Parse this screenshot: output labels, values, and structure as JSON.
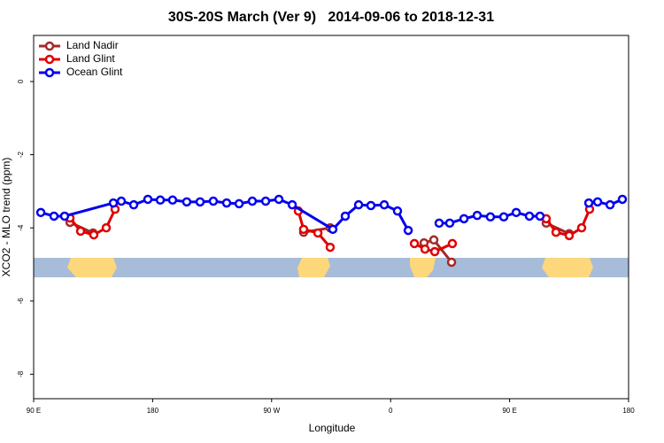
{
  "chart_data": {
    "type": "line",
    "title": "30S-20S March (Ver 9)   2014-09-06 to 2018-12-31",
    "x_label": "Longitude",
    "y_label": "XCO2 - MLO trend (ppm)",
    "xlim": [
      90,
      540
    ],
    "ylim": [
      -8.67,
      1.26
    ],
    "xticks": [
      {
        "value": 90,
        "label": "90 E"
      },
      {
        "value": 180,
        "label": "180"
      },
      {
        "value": 270,
        "label": "90 W"
      },
      {
        "value": 360,
        "label": "0"
      },
      {
        "value": 450,
        "label": "90 E"
      },
      {
        "value": 540,
        "label": "180"
      }
    ],
    "yticks": [
      0,
      -2,
      -4,
      -6,
      -8
    ],
    "grid": false,
    "legend": "top-left",
    "series": [
      {
        "name": "Land Nadir",
        "color": "#a52a2a",
        "x": [
          117.5,
          134.9,
          null,
          294.2,
          314.3,
          null,
          385.3,
          392.7,
          406.1,
          null,
          477.7,
          495.1
        ],
        "values": [
          -3.85,
          -4.14,
          null,
          -4.12,
          -4.0,
          null,
          -4.41,
          -4.33,
          -4.94,
          null,
          -3.87,
          -4.16
        ]
      },
      {
        "name": "Land Glint",
        "color": "#e00000",
        "x": [
          117.5,
          125.5,
          135.5,
          144.9,
          151.6,
          null,
          290.2,
          294.2,
          305,
          314.3,
          null,
          378,
          386,
          393.4,
          406.7,
          null,
          477.7,
          485.1,
          495.1,
          504.5,
          510.5
        ],
        "values": [
          -3.73,
          -4.09,
          -4.19,
          -4.0,
          -3.49,
          null,
          -3.54,
          -4.04,
          -4.14,
          -4.53,
          null,
          -4.43,
          -4.58,
          -4.65,
          -4.43,
          null,
          -3.75,
          -4.12,
          -4.21,
          -4.0,
          -3.49
        ]
      },
      {
        "name": "Ocean Glint",
        "color": "#0000ee",
        "x": [
          95.4,
          105.4,
          113.4,
          150.3,
          156.3,
          165.7,
          176.4,
          185.8,
          195.1,
          205.8,
          215.9,
          225.9,
          236,
          245.4,
          255.4,
          265.5,
          275.5,
          285.6,
          316.3,
          325.7,
          335.8,
          345.1,
          355.2,
          365.2,
          373.3,
          null,
          396.7,
          404.7,
          415.5,
          425.5,
          435.5,
          445.6,
          455,
          465,
          473,
          null,
          509.9,
          516.6,
          526,
          535.3
        ],
        "values": [
          -3.58,
          -3.68,
          -3.68,
          -3.32,
          -3.27,
          -3.37,
          -3.22,
          -3.24,
          -3.24,
          -3.29,
          -3.29,
          -3.27,
          -3.32,
          -3.34,
          -3.27,
          -3.27,
          -3.22,
          -3.37,
          -4.04,
          -3.68,
          -3.37,
          -3.39,
          -3.37,
          -3.54,
          -4.07,
          null,
          -3.87,
          -3.87,
          -3.75,
          -3.66,
          -3.7,
          -3.7,
          -3.58,
          -3.68,
          -3.68,
          null,
          -3.32,
          -3.29,
          -3.37,
          -3.22
        ]
      }
    ]
  }
}
